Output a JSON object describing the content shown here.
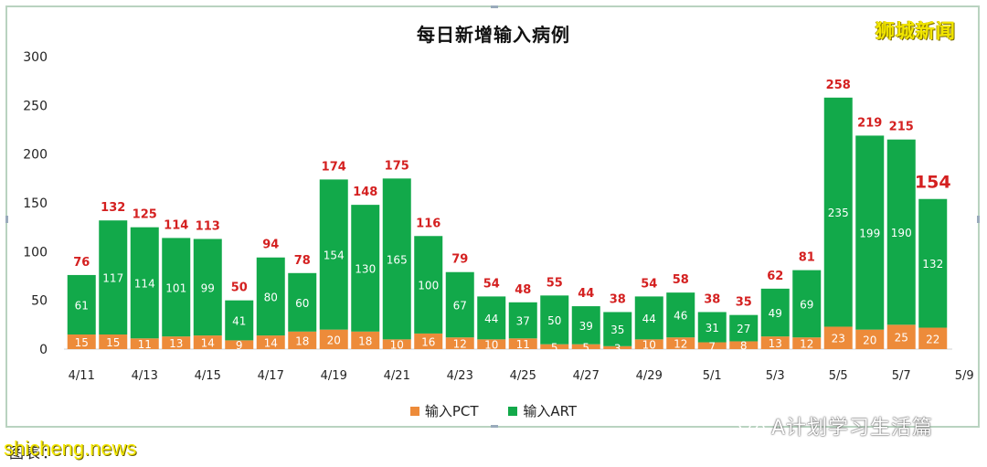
{
  "brand": "狮城新闻",
  "watermark": "A计划学习生活篇",
  "footer_source": "图表：",
  "footer_site": "shicheng.news",
  "chart_data": {
    "type": "bar",
    "stacked": true,
    "title": "每日新增输入病例",
    "categories": [
      "4/11",
      "4/12",
      "4/13",
      "4/14",
      "4/15",
      "4/16",
      "4/17",
      "4/18",
      "4/19",
      "4/20",
      "4/21",
      "4/22",
      "4/23",
      "4/24",
      "4/25",
      "4/26",
      "4/27",
      "4/28",
      "4/29",
      "4/30",
      "5/1",
      "5/2",
      "5/3",
      "5/4",
      "5/5",
      "5/6",
      "5/7",
      "5/8"
    ],
    "x_tick_labels": [
      "4/11",
      "4/13",
      "4/15",
      "4/17",
      "4/19",
      "4/21",
      "4/23",
      "4/25",
      "4/27",
      "4/29",
      "5/1",
      "5/3",
      "5/5",
      "5/7",
      "5/9"
    ],
    "series": [
      {
        "name": "输入PCT",
        "color": "#ed8b3a",
        "values": [
          15,
          15,
          11,
          13,
          14,
          9,
          14,
          18,
          20,
          18,
          10,
          16,
          12,
          10,
          11,
          5,
          5,
          3,
          10,
          12,
          7,
          8,
          13,
          12,
          23,
          20,
          25,
          22
        ]
      },
      {
        "name": "输入ART",
        "color": "#12a94a",
        "values": [
          61,
          117,
          114,
          101,
          99,
          41,
          80,
          60,
          154,
          130,
          165,
          100,
          67,
          44,
          37,
          50,
          39,
          35,
          44,
          46,
          31,
          27,
          49,
          69,
          235,
          199,
          190,
          132
        ]
      }
    ],
    "totals": [
      76,
      132,
      125,
      114,
      113,
      50,
      94,
      78,
      174,
      148,
      175,
      116,
      79,
      54,
      48,
      55,
      44,
      38,
      54,
      58,
      38,
      35,
      62,
      81,
      258,
      219,
      215,
      154
    ],
    "highlight_last_total": true,
    "total_label_color": "#d42020",
    "y_ticks": [
      0,
      50,
      100,
      150,
      200,
      250,
      300
    ],
    "ylim": [
      0,
      300
    ],
    "legend": [
      "输入PCT",
      "输入ART"
    ],
    "legend_position": "bottom"
  }
}
